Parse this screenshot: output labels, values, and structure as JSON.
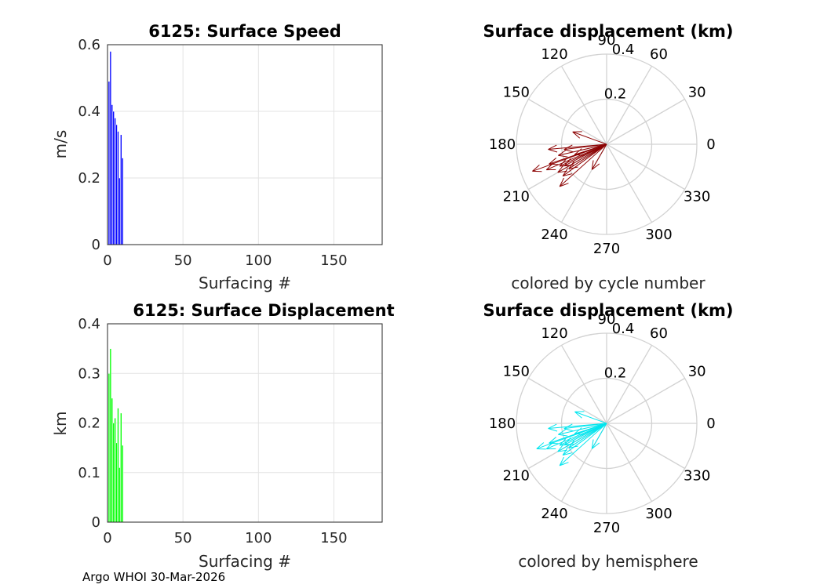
{
  "chart_data": [
    {
      "type": "bar",
      "title": "6125: Surface Speed",
      "xlabel": "Surfacing #",
      "ylabel": "m/s",
      "xlim": [
        0,
        182
      ],
      "ylim": [
        0,
        0.6
      ],
      "xticks": [
        "0",
        "50",
        "100",
        "150"
      ],
      "yticks": [
        "0",
        "0.2",
        "0.4",
        "0.6"
      ],
      "color": "#0000ff",
      "x": [
        1,
        2,
        3,
        4,
        5,
        6,
        7,
        8,
        9,
        10
      ],
      "values": [
        0.49,
        0.58,
        0.42,
        0.4,
        0.38,
        0.36,
        0.34,
        0.2,
        0.33,
        0.26
      ]
    },
    {
      "type": "bar",
      "title": "6125: Surface Displacement",
      "xlabel": "Surfacing #",
      "ylabel": "km",
      "xlim": [
        0,
        182
      ],
      "ylim": [
        0,
        0.4
      ],
      "xticks": [
        "0",
        "50",
        "100",
        "150"
      ],
      "yticks": [
        "0",
        "0.1",
        "0.2",
        "0.3",
        "0.4"
      ],
      "color": "#00ff00",
      "x": [
        1,
        2,
        3,
        4,
        5,
        6,
        7,
        8,
        9,
        10
      ],
      "values": [
        0.3,
        0.35,
        0.25,
        0.2,
        0.21,
        0.16,
        0.23,
        0.11,
        0.22,
        0.155
      ]
    },
    {
      "type": "polar-compass",
      "title": "Surface displacement (km)",
      "caption": "colored by cycle number",
      "rmax": 0.4,
      "rticks": [
        "0.2",
        "0.4"
      ],
      "angle_labels": [
        "0",
        "30",
        "60",
        "90",
        "120",
        "150",
        "180",
        "210",
        "240",
        "270",
        "300",
        "330"
      ],
      "arrow_color": "#8b0000",
      "arrows": [
        {
          "angle_deg": 200,
          "r": 0.35
        },
        {
          "angle_deg": 203,
          "r": 0.29
        },
        {
          "angle_deg": 210,
          "r": 0.25
        },
        {
          "angle_deg": 213,
          "r": 0.2
        },
        {
          "angle_deg": 205,
          "r": 0.23
        },
        {
          "angle_deg": 199,
          "r": 0.27
        },
        {
          "angle_deg": 207,
          "r": 0.21
        },
        {
          "angle_deg": 160,
          "r": 0.16
        },
        {
          "angle_deg": 193,
          "r": 0.22
        },
        {
          "angle_deg": 240,
          "r": 0.13
        },
        {
          "angle_deg": 187,
          "r": 0.19
        },
        {
          "angle_deg": 222,
          "r": 0.28
        },
        {
          "angle_deg": 216,
          "r": 0.24
        },
        {
          "angle_deg": 198,
          "r": 0.15
        },
        {
          "angle_deg": 185,
          "r": 0.26
        }
      ]
    },
    {
      "type": "polar-compass",
      "title": "Surface displacement (km)",
      "caption": "colored by hemisphere",
      "rmax": 0.4,
      "rticks": [
        "0.2",
        "0.4"
      ],
      "angle_labels": [
        "0",
        "30",
        "60",
        "90",
        "120",
        "150",
        "180",
        "210",
        "240",
        "270",
        "300",
        "330"
      ],
      "arrow_color": "#00e5ee",
      "arrows": [
        {
          "angle_deg": 200,
          "r": 0.33
        },
        {
          "angle_deg": 203,
          "r": 0.29
        },
        {
          "angle_deg": 210,
          "r": 0.25
        },
        {
          "angle_deg": 213,
          "r": 0.2
        },
        {
          "angle_deg": 205,
          "r": 0.23
        },
        {
          "angle_deg": 199,
          "r": 0.27
        },
        {
          "angle_deg": 207,
          "r": 0.21
        },
        {
          "angle_deg": 160,
          "r": 0.15
        },
        {
          "angle_deg": 193,
          "r": 0.22
        },
        {
          "angle_deg": 240,
          "r": 0.13
        },
        {
          "angle_deg": 187,
          "r": 0.19
        },
        {
          "angle_deg": 222,
          "r": 0.28
        },
        {
          "angle_deg": 216,
          "r": 0.24
        },
        {
          "angle_deg": 198,
          "r": 0.15
        },
        {
          "angle_deg": 185,
          "r": 0.26
        }
      ]
    }
  ],
  "footer": "Argo WHOI 30-Mar-2026"
}
